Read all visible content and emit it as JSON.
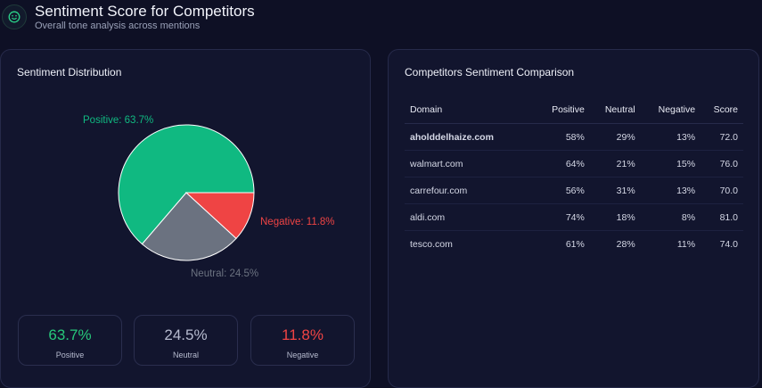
{
  "header": {
    "title": "Sentiment Score for Competitors",
    "subtitle": "Overall tone analysis across mentions"
  },
  "distribution": {
    "title": "Sentiment Distribution",
    "pie_labels": {
      "positive": "Positive: 63.7%",
      "neutral": "Neutral: 24.5%",
      "negative": "Negative: 11.8%"
    },
    "stats": [
      {
        "value": "63.7%",
        "label": "Positive"
      },
      {
        "value": "24.5%",
        "label": "Neutral"
      },
      {
        "value": "11.8%",
        "label": "Negative"
      }
    ],
    "colors": {
      "positive": "#10b981",
      "neutral": "#6b7280",
      "negative": "#ef4444"
    }
  },
  "chart_data": {
    "type": "pie",
    "categories": [
      "Positive",
      "Neutral",
      "Negative"
    ],
    "values": [
      63.7,
      24.5,
      11.8
    ],
    "title": "Sentiment Distribution"
  },
  "comparison": {
    "title": "Competitors Sentiment Comparison",
    "headers": [
      "Domain",
      "Positive",
      "Neutral",
      "Negative",
      "Score"
    ],
    "rows": [
      {
        "domain": "aholddelhaize.com",
        "positive": "58%",
        "neutral": "29%",
        "negative": "13%",
        "score": "72.0"
      },
      {
        "domain": "walmart.com",
        "positive": "64%",
        "neutral": "21%",
        "negative": "15%",
        "score": "76.0"
      },
      {
        "domain": "carrefour.com",
        "positive": "56%",
        "neutral": "31%",
        "negative": "13%",
        "score": "70.0"
      },
      {
        "domain": "aldi.com",
        "positive": "74%",
        "neutral": "18%",
        "negative": "8%",
        "score": "81.0"
      },
      {
        "domain": "tesco.com",
        "positive": "61%",
        "neutral": "28%",
        "negative": "11%",
        "score": "74.0"
      }
    ]
  }
}
